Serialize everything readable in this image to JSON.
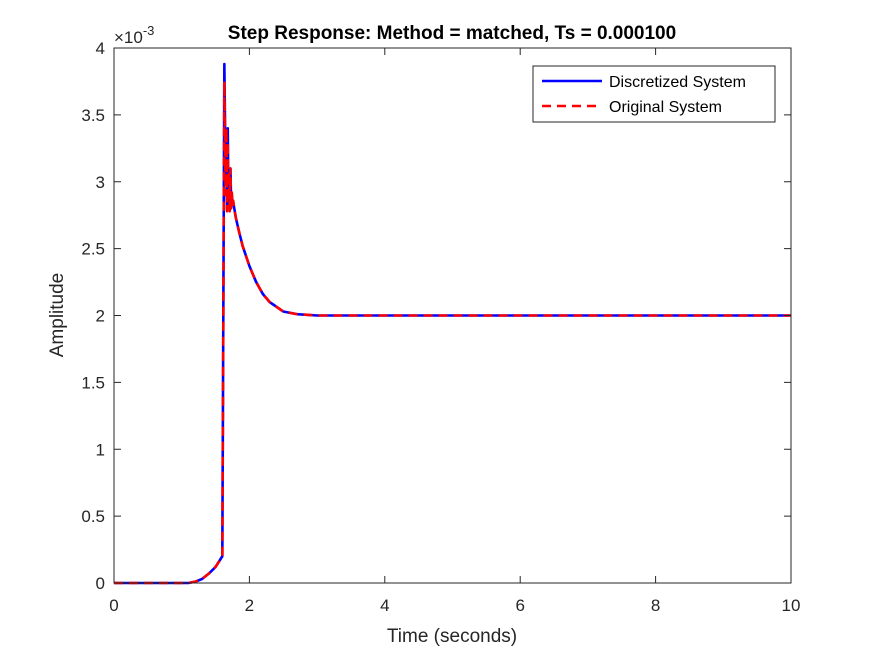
{
  "chart_data": {
    "type": "line",
    "title": "Step Response: Method = matched, Ts = 0.000100",
    "xlabel": "Time (seconds)",
    "ylabel": "Amplitude",
    "y_exponent_label": "×10",
    "y_exponent_power": "-3",
    "xlim": [
      0,
      10
    ],
    "ylim": [
      0,
      4
    ],
    "xticks": [
      "0",
      "2",
      "4",
      "6",
      "8",
      "10"
    ],
    "yticks": [
      "0",
      "0.5",
      "1",
      "1.5",
      "2",
      "2.5",
      "3",
      "3.5",
      "4"
    ],
    "grid": false,
    "legend_position": "top-right",
    "series": [
      {
        "name": "Discretized System",
        "color": "#0000ff",
        "style": "solid",
        "x": [
          0,
          1.1,
          1.2,
          1.3,
          1.4,
          1.5,
          1.6,
          1.63,
          1.65,
          1.66,
          1.67,
          1.68,
          1.69,
          1.7,
          1.71,
          1.72,
          1.73,
          1.74,
          1.75,
          1.76,
          1.78,
          1.8,
          1.85,
          1.9,
          2.0,
          2.1,
          2.2,
          2.3,
          2.5,
          2.7,
          3.0,
          3.5,
          4.0,
          6.0,
          8.0,
          10.0
        ],
        "y": [
          0.0,
          0.0,
          1e-05,
          3e-05,
          7e-05,
          0.00012,
          0.0002,
          0.00388,
          0.003,
          0.00325,
          0.0028,
          0.0034,
          0.0029,
          0.00305,
          0.0028,
          0.0031,
          0.00285,
          0.0029,
          0.00285,
          0.00285,
          0.00279,
          0.00273,
          0.00262,
          0.00252,
          0.00237,
          0.00225,
          0.00216,
          0.0021,
          0.00203,
          0.00201,
          0.002,
          0.002,
          0.002,
          0.002,
          0.002,
          0.002
        ]
      },
      {
        "name": "Original System",
        "color": "#ff0000",
        "style": "dashed",
        "x": [
          0,
          1.1,
          1.2,
          1.3,
          1.4,
          1.5,
          1.6,
          1.63,
          1.65,
          1.66,
          1.67,
          1.68,
          1.69,
          1.7,
          1.71,
          1.72,
          1.73,
          1.74,
          1.75,
          1.76,
          1.78,
          1.8,
          1.85,
          1.9,
          2.0,
          2.1,
          2.2,
          2.3,
          2.5,
          2.7,
          3.0,
          3.5,
          4.0,
          6.0,
          8.0,
          10.0
        ],
        "y": [
          0.0,
          0.0,
          1e-05,
          3e-05,
          7e-05,
          0.00012,
          0.0002,
          0.00375,
          0.0029,
          0.0034,
          0.00278,
          0.0033,
          0.00285,
          0.00308,
          0.00278,
          0.0031,
          0.0028,
          0.00292,
          0.00283,
          0.00286,
          0.00279,
          0.00273,
          0.00262,
          0.00252,
          0.00237,
          0.00225,
          0.00216,
          0.0021,
          0.00203,
          0.00201,
          0.002,
          0.002,
          0.002,
          0.002,
          0.002,
          0.002
        ]
      }
    ]
  }
}
